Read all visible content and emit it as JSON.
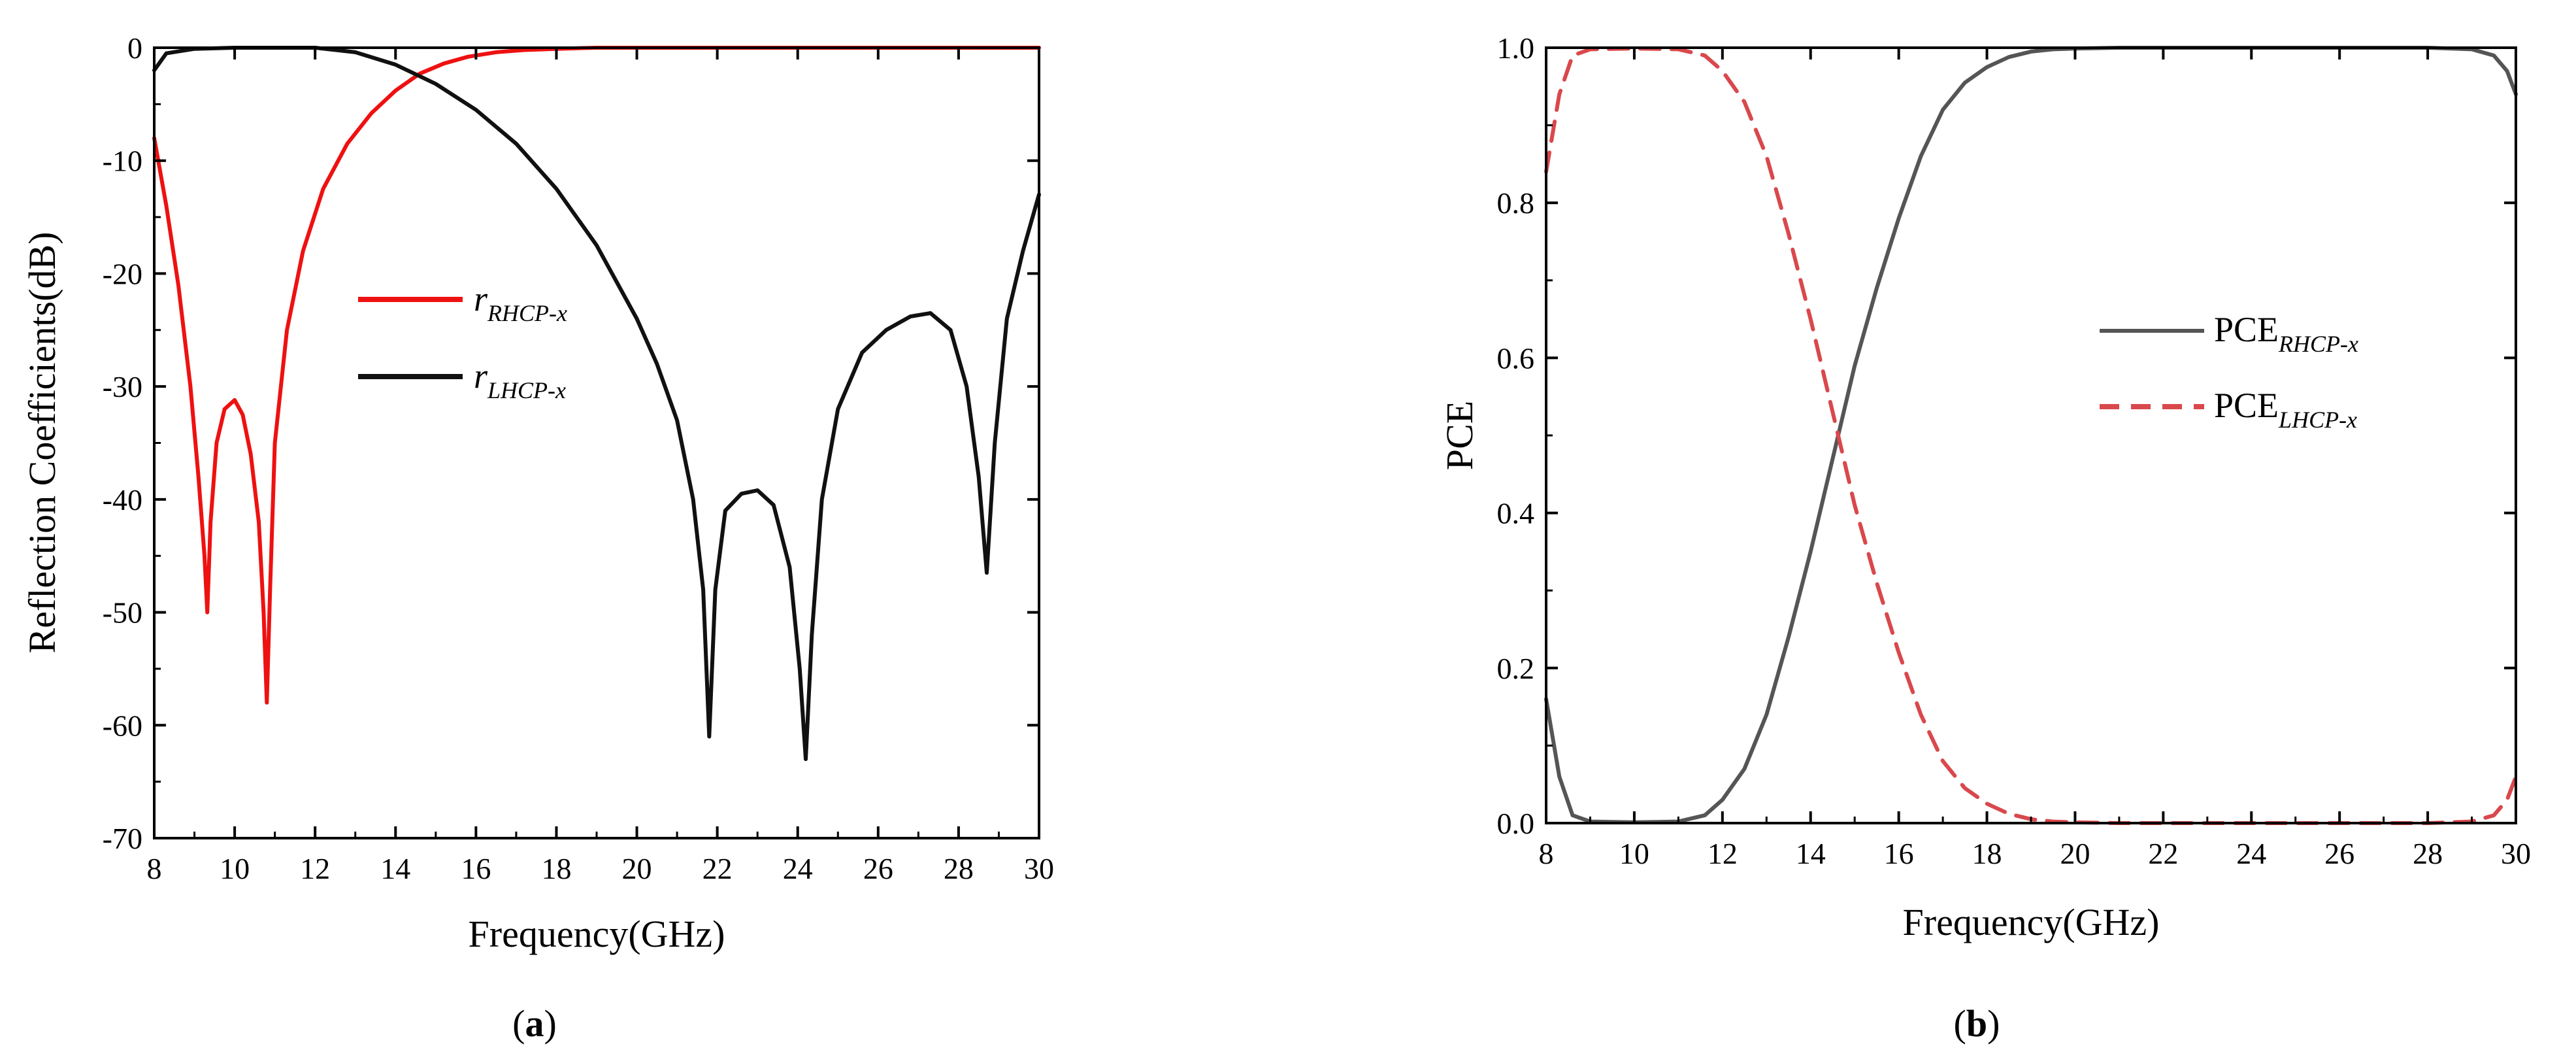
{
  "chart_data": [
    {
      "type": "line",
      "caption": {
        "open": "(",
        "letter": "a",
        "close": ")"
      },
      "xlabel": "Frequency(GHz)",
      "ylabel": "Reflection Coefficients(dB)",
      "xlim": [
        8,
        30
      ],
      "ylim": [
        -70,
        0
      ],
      "xticks": [
        "8",
        "10",
        "12",
        "14",
        "16",
        "18",
        "20",
        "22",
        "24",
        "26",
        "28",
        "30"
      ],
      "yticks": [
        "0",
        "-10",
        "-20",
        "-30",
        "-40",
        "-50",
        "-60",
        "-70"
      ],
      "xtick_values": [
        8,
        10,
        12,
        14,
        16,
        18,
        20,
        22,
        24,
        26,
        28,
        30
      ],
      "ytick_values": [
        0,
        -10,
        -20,
        -30,
        -40,
        -50,
        -60,
        -70
      ],
      "legend_position": "center-left",
      "grid": false,
      "series": [
        {
          "name": "r",
          "name_sub": "RHCP-x",
          "color": "#ee1111",
          "style": "solid",
          "x": [
            8,
            8.3,
            8.6,
            8.9,
            9.1,
            9.25,
            9.32,
            9.4,
            9.55,
            9.75,
            10.0,
            10.2,
            10.4,
            10.6,
            10.72,
            10.8,
            10.88,
            11.0,
            11.3,
            11.7,
            12.2,
            12.8,
            13.4,
            14.0,
            14.6,
            15.2,
            15.8,
            16.5,
            17.2,
            18.0,
            19.0,
            20.0,
            22.0,
            24.0,
            26.0,
            28.0,
            30.0
          ],
          "y": [
            -8,
            -14,
            -21,
            -30,
            -38,
            -45,
            -50,
            -42,
            -35,
            -32,
            -31.2,
            -32.5,
            -36,
            -42,
            -50,
            -58,
            -48,
            -35,
            -25,
            -18,
            -12.5,
            -8.5,
            -5.8,
            -3.8,
            -2.3,
            -1.4,
            -0.8,
            -0.4,
            -0.2,
            -0.1,
            0,
            0,
            0,
            0,
            0,
            0,
            0
          ]
        },
        {
          "name": "r",
          "name_sub": "LHCP-x",
          "color": "#111111",
          "style": "solid",
          "x": [
            8,
            8.3,
            9,
            10,
            11,
            12,
            13,
            14,
            15,
            16,
            17,
            18,
            19,
            20,
            20.5,
            21.0,
            21.4,
            21.65,
            21.8,
            21.95,
            22.2,
            22.6,
            23.0,
            23.4,
            23.8,
            24.05,
            24.2,
            24.35,
            24.6,
            25.0,
            25.6,
            26.2,
            26.8,
            27.3,
            27.8,
            28.2,
            28.5,
            28.7,
            28.9,
            29.2,
            29.6,
            30.0
          ],
          "y": [
            -2,
            -0.5,
            -0.1,
            0,
            0,
            0,
            -0.4,
            -1.5,
            -3.2,
            -5.5,
            -8.5,
            -12.5,
            -17.5,
            -24,
            -28,
            -33,
            -40,
            -48,
            -61,
            -48,
            -41,
            -39.5,
            -39.2,
            -40.5,
            -46,
            -55,
            -63,
            -52,
            -40,
            -32,
            -27,
            -25,
            -23.8,
            -23.5,
            -25,
            -30,
            -38,
            -46.5,
            -35,
            -24,
            -18,
            -13
          ]
        }
      ]
    },
    {
      "type": "line",
      "caption": {
        "open": "(",
        "letter": "b",
        "close": ")"
      },
      "xlabel": "Frequency(GHz)",
      "ylabel": "PCE",
      "xlim": [
        8,
        30
      ],
      "ylim": [
        0,
        1
      ],
      "xticks": [
        "8",
        "10",
        "12",
        "14",
        "16",
        "18",
        "20",
        "22",
        "24",
        "26",
        "28",
        "30"
      ],
      "yticks": [
        "0.0",
        "0.2",
        "0.4",
        "0.6",
        "0.8",
        "1.0"
      ],
      "xtick_values": [
        8,
        10,
        12,
        14,
        16,
        18,
        20,
        22,
        24,
        26,
        28,
        30
      ],
      "ytick_values": [
        0,
        0.2,
        0.4,
        0.6,
        0.8,
        1.0
      ],
      "legend_position": "center-right",
      "grid": false,
      "series": [
        {
          "name": "PCE",
          "name_sub": "RHCP-x",
          "color": "#555555",
          "style": "solid",
          "x": [
            8,
            8.3,
            8.6,
            9.0,
            10.0,
            11.0,
            11.6,
            12.0,
            12.5,
            13.0,
            13.5,
            14.0,
            14.5,
            15.0,
            15.5,
            16.0,
            16.5,
            17.0,
            17.5,
            18.0,
            18.5,
            19.0,
            19.5,
            20.0,
            21.0,
            22.0,
            24.0,
            26.0,
            28.0,
            29.0,
            29.5,
            29.8,
            30.0
          ],
          "y": [
            0.16,
            0.06,
            0.01,
            0.002,
            0.001,
            0.002,
            0.01,
            0.03,
            0.07,
            0.14,
            0.24,
            0.35,
            0.47,
            0.59,
            0.69,
            0.78,
            0.86,
            0.92,
            0.955,
            0.975,
            0.988,
            0.995,
            0.998,
            0.999,
            1.0,
            1.0,
            1.0,
            1.0,
            1.0,
            0.998,
            0.99,
            0.97,
            0.94
          ]
        },
        {
          "name": "PCE",
          "name_sub": "LHCP-x",
          "color": "#d9484c",
          "style": "dashed",
          "x": [
            8,
            8.3,
            8.6,
            9.0,
            10.0,
            11.0,
            11.6,
            12.0,
            12.5,
            13.0,
            13.5,
            14.0,
            14.5,
            15.0,
            15.5,
            16.0,
            16.5,
            17.0,
            17.5,
            18.0,
            18.5,
            19.0,
            19.5,
            20.0,
            21.0,
            22.0,
            24.0,
            26.0,
            28.0,
            29.0,
            29.5,
            29.8,
            30.0
          ],
          "y": [
            0.84,
            0.94,
            0.99,
            0.998,
            0.999,
            0.998,
            0.99,
            0.97,
            0.93,
            0.86,
            0.76,
            0.65,
            0.53,
            0.41,
            0.31,
            0.22,
            0.14,
            0.08,
            0.045,
            0.025,
            0.012,
            0.005,
            0.002,
            0.001,
            0.0,
            0.0,
            0.0,
            0.0,
            0.0,
            0.002,
            0.01,
            0.03,
            0.06
          ]
        }
      ]
    }
  ]
}
